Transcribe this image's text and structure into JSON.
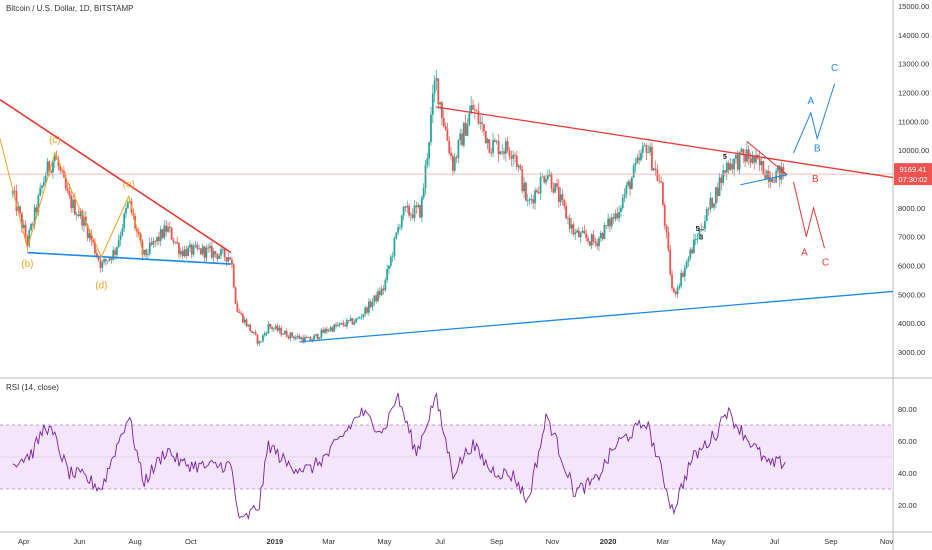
{
  "header": {
    "title": "Bitcoin / U.S. Dollar, 1D, BITSTAMP"
  },
  "rsi_panel": {
    "label": "RSI (14, close)"
  },
  "colors": {
    "candle_up": "#26a69a",
    "candle_down": "#ef5350",
    "trend_red": "#e53935",
    "trend_blue": "#1e88e5",
    "wave_orange": "#f0a020",
    "rsi_line": "#7b1fa2",
    "rsi_band": "#f3e5fb"
  },
  "price_badge": {
    "value": "9169.41",
    "countdown": "07:30:02"
  },
  "chart_data": [
    {
      "type": "candlestick",
      "title": "Bitcoin / U.S. Dollar, 1D, BITSTAMP",
      "ylim": [
        2500,
        15500
      ],
      "y_ticks": [
        "3000.00",
        "4000.00",
        "5000.00",
        "6000.00",
        "7000.00",
        "8000.00",
        "9000.00",
        "10000.00",
        "11000.00",
        "12000.00",
        "13000.00",
        "14000.00",
        "15000.00"
      ],
      "x_ticks": [
        "Apr",
        "Jun",
        "Aug",
        "Oct",
        "2019",
        "Mar",
        "May",
        "Jul",
        "Sep",
        "Nov",
        "2020",
        "Mar",
        "May",
        "Jul",
        "Sep",
        "Nov"
      ],
      "series": [
        {
          "close_path": [
            [
              "2018-03-20",
              8500
            ],
            [
              "2018-04-05",
              6800
            ],
            [
              "2018-04-25",
              9200
            ],
            [
              "2018-05-05",
              9800
            ],
            [
              "2018-05-20",
              8300
            ],
            [
              "2018-06-05",
              7600
            ],
            [
              "2018-06-25",
              6000
            ],
            [
              "2018-07-10",
              6500
            ],
            [
              "2018-07-25",
              8200
            ],
            [
              "2018-08-10",
              6300
            ],
            [
              "2018-09-05",
              7300
            ],
            [
              "2018-09-20",
              6500
            ],
            [
              "2018-10-15",
              6500
            ],
            [
              "2018-11-14",
              6300
            ],
            [
              "2018-11-20",
              4500
            ],
            [
              "2018-12-15",
              3300
            ],
            [
              "2018-12-25",
              3900
            ],
            [
              "2019-01-15",
              3600
            ],
            [
              "2019-02-08",
              3400
            ],
            [
              "2019-03-01",
              3800
            ],
            [
              "2019-04-01",
              4100
            ],
            [
              "2019-04-30",
              5200
            ],
            [
              "2019-05-20",
              7800
            ],
            [
              "2019-06-10",
              7900
            ],
            [
              "2019-06-26",
              12500
            ],
            [
              "2019-07-05",
              11000
            ],
            [
              "2019-07-15",
              9500
            ],
            [
              "2019-08-05",
              11500
            ],
            [
              "2019-08-25",
              10200
            ],
            [
              "2019-09-20",
              10000
            ],
            [
              "2019-10-05",
              8100
            ],
            [
              "2019-10-26",
              9300
            ],
            [
              "2019-11-25",
              7100
            ],
            [
              "2019-12-18",
              6800
            ],
            [
              "2020-01-10",
              7800
            ],
            [
              "2020-02-12",
              10200
            ],
            [
              "2020-02-28",
              8700
            ],
            [
              "2020-03-12",
              4900
            ],
            [
              "2020-04-01",
              6500
            ],
            [
              "2020-04-30",
              8700
            ],
            [
              "2020-05-10",
              9500
            ],
            [
              "2020-06-01",
              9800
            ],
            [
              "2020-06-25",
              9200
            ],
            [
              "2020-07-13",
              9169
            ]
          ]
        }
      ],
      "annotations": {
        "wave_labels_orange": [
          "(b)",
          "(c)",
          "(d)",
          "(e)"
        ],
        "wave_labels_black": [
          "5",
          "3",
          "5"
        ],
        "projection_blue": [
          "A",
          "B",
          "C"
        ],
        "projection_red": [
          "B",
          "A",
          "C"
        ]
      }
    },
    {
      "type": "line",
      "title": "RSI (14, close)",
      "ylim": [
        5,
        95
      ],
      "y_ticks": [
        "20.00",
        "40.00",
        "60.00",
        "80.00"
      ],
      "bands": [
        30,
        70
      ],
      "series": [
        {
          "name": "RSI (14, close)",
          "points": [
            [
              "2018-03-20",
              46
            ],
            [
              "2018-04-10",
              52
            ],
            [
              "2018-04-25",
              70
            ],
            [
              "2018-05-05",
              62
            ],
            [
              "2018-05-20",
              40
            ],
            [
              "2018-06-05",
              38
            ],
            [
              "2018-06-25",
              30
            ],
            [
              "2018-07-10",
              54
            ],
            [
              "2018-07-25",
              76
            ],
            [
              "2018-08-10",
              34
            ],
            [
              "2018-09-05",
              55
            ],
            [
              "2018-09-20",
              46
            ],
            [
              "2018-10-15",
              44
            ],
            [
              "2018-11-14",
              45
            ],
            [
              "2018-11-20",
              20
            ],
            [
              "2018-11-25",
              9
            ],
            [
              "2018-12-15",
              20
            ],
            [
              "2018-12-25",
              58
            ],
            [
              "2019-01-15",
              45
            ],
            [
              "2019-02-08",
              42
            ],
            [
              "2019-03-01",
              52
            ],
            [
              "2019-04-05",
              78
            ],
            [
              "2019-04-30",
              66
            ],
            [
              "2019-05-15",
              89
            ],
            [
              "2019-06-05",
              52
            ],
            [
              "2019-06-26",
              88
            ],
            [
              "2019-07-15",
              40
            ],
            [
              "2019-08-05",
              58
            ],
            [
              "2019-08-25",
              42
            ],
            [
              "2019-09-20",
              38
            ],
            [
              "2019-10-05",
              22
            ],
            [
              "2019-10-26",
              76
            ],
            [
              "2019-11-25",
              28
            ],
            [
              "2019-12-18",
              35
            ],
            [
              "2020-01-10",
              58
            ],
            [
              "2020-02-12",
              72
            ],
            [
              "2020-02-28",
              42
            ],
            [
              "2020-03-12",
              16
            ],
            [
              "2020-04-01",
              48
            ],
            [
              "2020-04-30",
              66
            ],
            [
              "2020-05-08",
              80
            ],
            [
              "2020-06-01",
              62
            ],
            [
              "2020-06-25",
              45
            ],
            [
              "2020-07-13",
              47
            ]
          ]
        }
      ]
    }
  ]
}
